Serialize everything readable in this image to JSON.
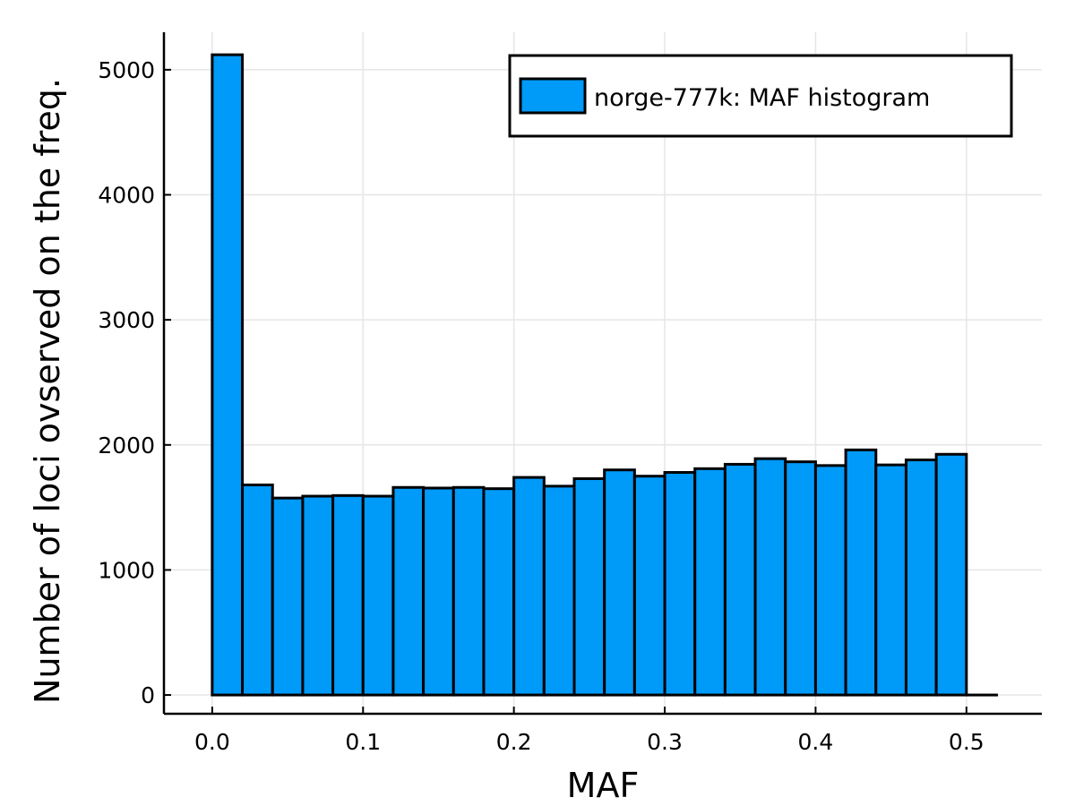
{
  "chart_data": {
    "type": "bar",
    "title": "",
    "xlabel": "MAF",
    "ylabel": "Number of loci ovserved on the freq.",
    "bin_edges": [
      0.0,
      0.02,
      0.04,
      0.06,
      0.08,
      0.1,
      0.12,
      0.14,
      0.16,
      0.18,
      0.2,
      0.22,
      0.24,
      0.26,
      0.28,
      0.3,
      0.32,
      0.34,
      0.36,
      0.38,
      0.4,
      0.42,
      0.44,
      0.46,
      0.48,
      0.5,
      0.52
    ],
    "series": [
      {
        "name": "norge-777k: MAF histogram",
        "values": [
          5120,
          1680,
          1575,
          1590,
          1595,
          1590,
          1660,
          1655,
          1660,
          1650,
          1740,
          1670,
          1730,
          1800,
          1750,
          1780,
          1810,
          1845,
          1890,
          1865,
          1835,
          1960,
          1840,
          1880,
          1925,
          0
        ]
      }
    ],
    "xlim": [
      -0.032,
      0.55
    ],
    "ylim": [
      -150,
      5300
    ],
    "xticks": [
      0.0,
      0.1,
      0.2,
      0.3,
      0.4,
      0.5
    ],
    "xtick_labels": [
      "0.0",
      "0.1",
      "0.2",
      "0.3",
      "0.4",
      "0.5"
    ],
    "yticks": [
      0,
      1000,
      2000,
      3000,
      4000,
      5000
    ],
    "ytick_labels": [
      "0",
      "1000",
      "2000",
      "3000",
      "4000",
      "5000"
    ],
    "grid": true,
    "legend_position": "top-right",
    "colors": {
      "bar_fill": "#009af9",
      "bar_edge": "#000000"
    }
  }
}
